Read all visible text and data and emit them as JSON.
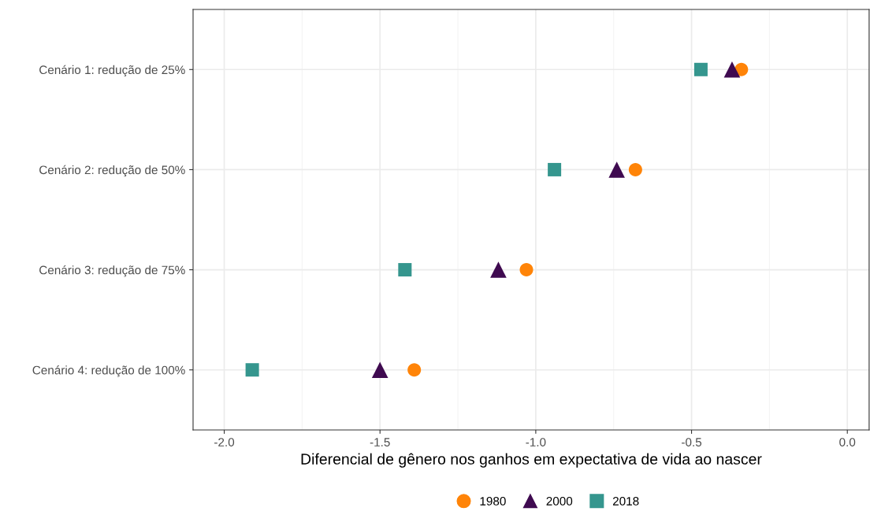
{
  "chart_data": {
    "type": "scatter",
    "orientation": "horizontal",
    "xlabel": "Diferencial de gênero nos ganhos em expectativa de vida ao nascer",
    "categories": [
      "Cenário 1: redução de 25%",
      "Cenário 2: redução de 50%",
      "Cenário 3: redução de 75%",
      "Cenário 4: redução de 100%"
    ],
    "series": [
      {
        "name": "1980",
        "color": "#ff8408",
        "marker": "circle",
        "values": [
          -0.34,
          -0.68,
          -1.03,
          -1.39
        ]
      },
      {
        "name": "2000",
        "color": "#3f0a50",
        "marker": "triangle",
        "values": [
          -0.37,
          -0.74,
          -1.12,
          -1.5
        ]
      },
      {
        "name": "2018",
        "color": "#35968e",
        "marker": "square",
        "values": [
          -0.47,
          -0.94,
          -1.42,
          -1.91
        ]
      }
    ],
    "xlim": [
      -2.1,
      0.07
    ],
    "xticks": [
      {
        "value": -2.0,
        "label": "-2.0"
      },
      {
        "value": -1.5,
        "label": "-1.5"
      },
      {
        "value": -1.0,
        "label": "-1.0"
      },
      {
        "value": -0.5,
        "label": "-0.5"
      },
      {
        "value": 0.0,
        "label": "0.0"
      }
    ],
    "grid": true,
    "legend": "bottom"
  }
}
